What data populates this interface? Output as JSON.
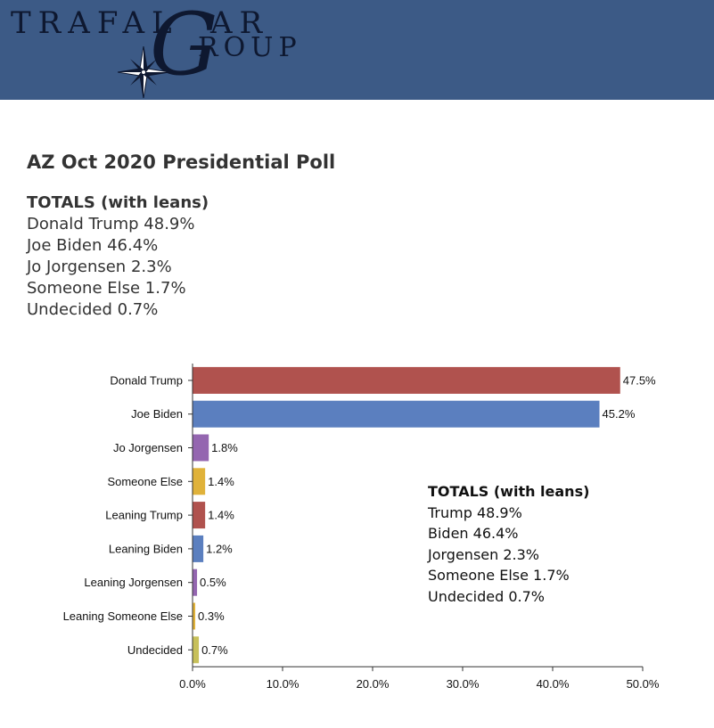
{
  "header": {
    "logo": {
      "text_line1": "TRAFAL",
      "text_g": "G",
      "text_line2_top": "AR",
      "text_line2": "ROUP",
      "icon": "compass-star-icon"
    },
    "background_color": "#3c5a86"
  },
  "page": {
    "title": "AZ Oct 2020 Presidential Poll",
    "totals_heading": "TOTALS (with leans)",
    "totals": [
      "Donald Trump 48.9%",
      "Joe Biden 46.4%",
      "Jo Jorgensen 2.3%",
      "Someone Else 1.7%",
      "Undecided 0.7%"
    ]
  },
  "chart_data": {
    "type": "bar",
    "orientation": "horizontal",
    "title": "",
    "xlabel": "",
    "ylabel": "",
    "categories": [
      "Donald Trump",
      "Joe Biden",
      "Jo Jorgensen",
      "Someone Else",
      "Leaning Trump",
      "Leaning Biden",
      "Leaning Jorgensen",
      "Leaning Someone Else",
      "Undecided"
    ],
    "values": [
      47.5,
      45.2,
      1.8,
      1.4,
      1.4,
      1.2,
      0.5,
      0.3,
      0.7
    ],
    "value_labels": [
      "47.5%",
      "45.2%",
      "1.8%",
      "1.4%",
      "1.4%",
      "1.2%",
      "0.5%",
      "0.3%",
      "0.7%"
    ],
    "colors": [
      "#b0524e",
      "#5b7fbf",
      "#9466b0",
      "#e0b23a",
      "#b0524e",
      "#5b7fbf",
      "#9466b0",
      "#e0b23a",
      "#c7c05a"
    ],
    "xlim": [
      0,
      50
    ],
    "xticks": [
      0,
      10,
      20,
      30,
      40,
      50
    ],
    "xtick_labels": [
      "0.0%",
      "10.0%",
      "20.0%",
      "30.0%",
      "40.0%",
      "50.0%"
    ],
    "grid": false,
    "annotation": {
      "heading": "TOTALS (with leans)",
      "lines": [
        "Trump 48.9%",
        "Biden 46.4%",
        "Jorgensen 2.3%",
        "Someone Else 1.7%",
        "Undecided 0.7%"
      ]
    }
  }
}
